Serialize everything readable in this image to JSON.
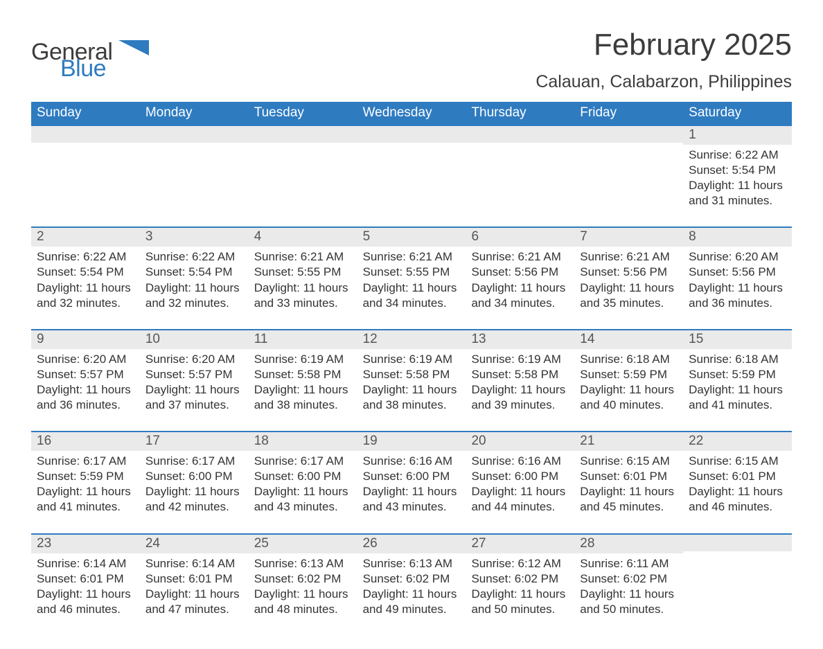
{
  "logo": {
    "word1": "General",
    "word2": "Blue",
    "text_color": "#3c3c3c",
    "accent_color": "#2e7bc0"
  },
  "header": {
    "month_title": "February 2025",
    "location": "Calauan, Calabarzon, Philippines",
    "title_fontsize": 44,
    "location_fontsize": 25,
    "title_color": "#3c3c3c"
  },
  "calendar": {
    "type": "table",
    "columns": [
      "Sunday",
      "Monday",
      "Tuesday",
      "Wednesday",
      "Thursday",
      "Friday",
      "Saturday"
    ],
    "header_bg": "#2e7bc0",
    "header_text_color": "#ffffff",
    "header_fontsize": 19,
    "row_divider_color": "#2e7bc0",
    "daynum_band_bg": "#eaeaea",
    "daynum_color": "#555555",
    "body_text_color": "#333333",
    "body_fontsize": 17,
    "daynum_fontsize": 19,
    "background_color": "#ffffff",
    "weeks": [
      [
        {
          "n": "",
          "sr": "",
          "ss": "",
          "dl": ""
        },
        {
          "n": "",
          "sr": "",
          "ss": "",
          "dl": ""
        },
        {
          "n": "",
          "sr": "",
          "ss": "",
          "dl": ""
        },
        {
          "n": "",
          "sr": "",
          "ss": "",
          "dl": ""
        },
        {
          "n": "",
          "sr": "",
          "ss": "",
          "dl": ""
        },
        {
          "n": "",
          "sr": "",
          "ss": "",
          "dl": ""
        },
        {
          "n": "1",
          "sr": "Sunrise: 6:22 AM",
          "ss": "Sunset: 5:54 PM",
          "dl": "Daylight: 11 hours and 31 minutes."
        }
      ],
      [
        {
          "n": "2",
          "sr": "Sunrise: 6:22 AM",
          "ss": "Sunset: 5:54 PM",
          "dl": "Daylight: 11 hours and 32 minutes."
        },
        {
          "n": "3",
          "sr": "Sunrise: 6:22 AM",
          "ss": "Sunset: 5:54 PM",
          "dl": "Daylight: 11 hours and 32 minutes."
        },
        {
          "n": "4",
          "sr": "Sunrise: 6:21 AM",
          "ss": "Sunset: 5:55 PM",
          "dl": "Daylight: 11 hours and 33 minutes."
        },
        {
          "n": "5",
          "sr": "Sunrise: 6:21 AM",
          "ss": "Sunset: 5:55 PM",
          "dl": "Daylight: 11 hours and 34 minutes."
        },
        {
          "n": "6",
          "sr": "Sunrise: 6:21 AM",
          "ss": "Sunset: 5:56 PM",
          "dl": "Daylight: 11 hours and 34 minutes."
        },
        {
          "n": "7",
          "sr": "Sunrise: 6:21 AM",
          "ss": "Sunset: 5:56 PM",
          "dl": "Daylight: 11 hours and 35 minutes."
        },
        {
          "n": "8",
          "sr": "Sunrise: 6:20 AM",
          "ss": "Sunset: 5:56 PM",
          "dl": "Daylight: 11 hours and 36 minutes."
        }
      ],
      [
        {
          "n": "9",
          "sr": "Sunrise: 6:20 AM",
          "ss": "Sunset: 5:57 PM",
          "dl": "Daylight: 11 hours and 36 minutes."
        },
        {
          "n": "10",
          "sr": "Sunrise: 6:20 AM",
          "ss": "Sunset: 5:57 PM",
          "dl": "Daylight: 11 hours and 37 minutes."
        },
        {
          "n": "11",
          "sr": "Sunrise: 6:19 AM",
          "ss": "Sunset: 5:58 PM",
          "dl": "Daylight: 11 hours and 38 minutes."
        },
        {
          "n": "12",
          "sr": "Sunrise: 6:19 AM",
          "ss": "Sunset: 5:58 PM",
          "dl": "Daylight: 11 hours and 38 minutes."
        },
        {
          "n": "13",
          "sr": "Sunrise: 6:19 AM",
          "ss": "Sunset: 5:58 PM",
          "dl": "Daylight: 11 hours and 39 minutes."
        },
        {
          "n": "14",
          "sr": "Sunrise: 6:18 AM",
          "ss": "Sunset: 5:59 PM",
          "dl": "Daylight: 11 hours and 40 minutes."
        },
        {
          "n": "15",
          "sr": "Sunrise: 6:18 AM",
          "ss": "Sunset: 5:59 PM",
          "dl": "Daylight: 11 hours and 41 minutes."
        }
      ],
      [
        {
          "n": "16",
          "sr": "Sunrise: 6:17 AM",
          "ss": "Sunset: 5:59 PM",
          "dl": "Daylight: 11 hours and 41 minutes."
        },
        {
          "n": "17",
          "sr": "Sunrise: 6:17 AM",
          "ss": "Sunset: 6:00 PM",
          "dl": "Daylight: 11 hours and 42 minutes."
        },
        {
          "n": "18",
          "sr": "Sunrise: 6:17 AM",
          "ss": "Sunset: 6:00 PM",
          "dl": "Daylight: 11 hours and 43 minutes."
        },
        {
          "n": "19",
          "sr": "Sunrise: 6:16 AM",
          "ss": "Sunset: 6:00 PM",
          "dl": "Daylight: 11 hours and 43 minutes."
        },
        {
          "n": "20",
          "sr": "Sunrise: 6:16 AM",
          "ss": "Sunset: 6:00 PM",
          "dl": "Daylight: 11 hours and 44 minutes."
        },
        {
          "n": "21",
          "sr": "Sunrise: 6:15 AM",
          "ss": "Sunset: 6:01 PM",
          "dl": "Daylight: 11 hours and 45 minutes."
        },
        {
          "n": "22",
          "sr": "Sunrise: 6:15 AM",
          "ss": "Sunset: 6:01 PM",
          "dl": "Daylight: 11 hours and 46 minutes."
        }
      ],
      [
        {
          "n": "23",
          "sr": "Sunrise: 6:14 AM",
          "ss": "Sunset: 6:01 PM",
          "dl": "Daylight: 11 hours and 46 minutes."
        },
        {
          "n": "24",
          "sr": "Sunrise: 6:14 AM",
          "ss": "Sunset: 6:01 PM",
          "dl": "Daylight: 11 hours and 47 minutes."
        },
        {
          "n": "25",
          "sr": "Sunrise: 6:13 AM",
          "ss": "Sunset: 6:02 PM",
          "dl": "Daylight: 11 hours and 48 minutes."
        },
        {
          "n": "26",
          "sr": "Sunrise: 6:13 AM",
          "ss": "Sunset: 6:02 PM",
          "dl": "Daylight: 11 hours and 49 minutes."
        },
        {
          "n": "27",
          "sr": "Sunrise: 6:12 AM",
          "ss": "Sunset: 6:02 PM",
          "dl": "Daylight: 11 hours and 50 minutes."
        },
        {
          "n": "28",
          "sr": "Sunrise: 6:11 AM",
          "ss": "Sunset: 6:02 PM",
          "dl": "Daylight: 11 hours and 50 minutes."
        },
        {
          "n": "",
          "sr": "",
          "ss": "",
          "dl": ""
        }
      ]
    ]
  }
}
